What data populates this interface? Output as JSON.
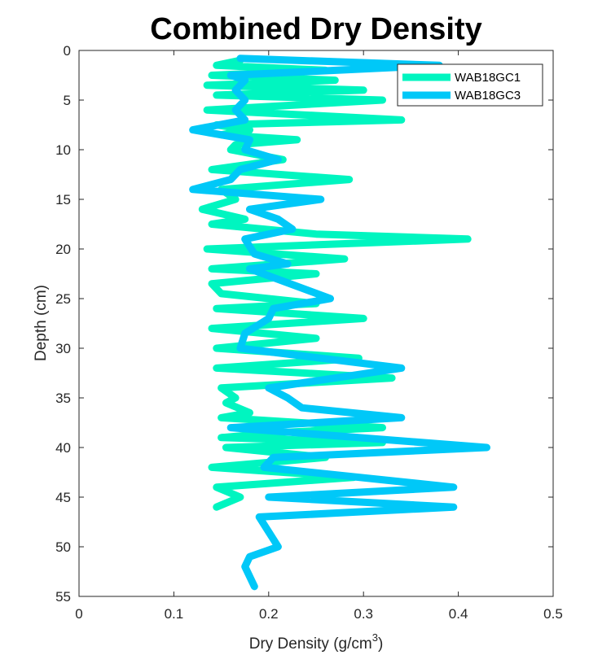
{
  "chart_data": {
    "type": "line",
    "title": "Combined Dry Density",
    "xlabel": "Dry Density (g/cm",
    "xlabel_superscript": "3",
    "xlabel_suffix": ")",
    "ylabel": "Depth (cm)",
    "xlim": [
      0,
      0.5
    ],
    "ylim": [
      0,
      55
    ],
    "y_reversed": true,
    "grid": false,
    "legend_position": "top-right",
    "xticks": [
      "0",
      "0.1",
      "0.2",
      "0.3",
      "0.4",
      "0.5"
    ],
    "yticks": [
      "0",
      "5",
      "10",
      "15",
      "20",
      "25",
      "30",
      "35",
      "40",
      "45",
      "50",
      "55"
    ],
    "series": [
      {
        "name": "WAB18GC1",
        "color": "#00f5c0",
        "points": [
          [
            0.17,
            1
          ],
          [
            0.145,
            1.5
          ],
          [
            0.26,
            2
          ],
          [
            0.14,
            2.5
          ],
          [
            0.27,
            3
          ],
          [
            0.135,
            3.5
          ],
          [
            0.3,
            4
          ],
          [
            0.145,
            4.5
          ],
          [
            0.32,
            5
          ],
          [
            0.135,
            6
          ],
          [
            0.34,
            7
          ],
          [
            0.145,
            7.5
          ],
          [
            0.18,
            8
          ],
          [
            0.15,
            8.5
          ],
          [
            0.23,
            9
          ],
          [
            0.165,
            9.5
          ],
          [
            0.16,
            10
          ],
          [
            0.215,
            11
          ],
          [
            0.14,
            12
          ],
          [
            0.285,
            13
          ],
          [
            0.15,
            14
          ],
          [
            0.165,
            15
          ],
          [
            0.13,
            16
          ],
          [
            0.175,
            17
          ],
          [
            0.14,
            17.5
          ],
          [
            0.25,
            18.5
          ],
          [
            0.41,
            19
          ],
          [
            0.135,
            20
          ],
          [
            0.28,
            21
          ],
          [
            0.14,
            22
          ],
          [
            0.25,
            22.5
          ],
          [
            0.14,
            23.5
          ],
          [
            0.15,
            24.5
          ],
          [
            0.25,
            25.5
          ],
          [
            0.145,
            26
          ],
          [
            0.3,
            27
          ],
          [
            0.14,
            28
          ],
          [
            0.25,
            29
          ],
          [
            0.145,
            30
          ],
          [
            0.295,
            31
          ],
          [
            0.145,
            32
          ],
          [
            0.33,
            33
          ],
          [
            0.15,
            34
          ],
          [
            0.165,
            35
          ],
          [
            0.155,
            35.5
          ],
          [
            0.18,
            36.5
          ],
          [
            0.15,
            37
          ],
          [
            0.32,
            38
          ],
          [
            0.21,
            38.5
          ],
          [
            0.15,
            39
          ],
          [
            0.32,
            39.5
          ],
          [
            0.155,
            40
          ],
          [
            0.26,
            41
          ],
          [
            0.14,
            42
          ],
          [
            0.29,
            43
          ],
          [
            0.145,
            44
          ],
          [
            0.17,
            45
          ],
          [
            0.145,
            46
          ]
        ]
      },
      {
        "name": "WAB18GC3",
        "color": "#00c8f8",
        "points": [
          [
            0.17,
            0.8
          ],
          [
            0.38,
            1.5
          ],
          [
            0.16,
            2.5
          ],
          [
            0.175,
            3
          ],
          [
            0.165,
            4
          ],
          [
            0.175,
            5
          ],
          [
            0.165,
            6
          ],
          [
            0.175,
            7
          ],
          [
            0.12,
            8
          ],
          [
            0.18,
            9
          ],
          [
            0.175,
            10
          ],
          [
            0.21,
            11
          ],
          [
            0.17,
            12
          ],
          [
            0.16,
            13
          ],
          [
            0.12,
            14
          ],
          [
            0.255,
            15
          ],
          [
            0.18,
            16
          ],
          [
            0.21,
            17
          ],
          [
            0.225,
            18
          ],
          [
            0.175,
            19
          ],
          [
            0.185,
            20.5
          ],
          [
            0.22,
            21.5
          ],
          [
            0.18,
            22
          ],
          [
            0.265,
            25
          ],
          [
            0.205,
            26
          ],
          [
            0.2,
            27
          ],
          [
            0.175,
            28.5
          ],
          [
            0.17,
            30
          ],
          [
            0.34,
            32
          ],
          [
            0.2,
            34
          ],
          [
            0.22,
            35
          ],
          [
            0.235,
            36
          ],
          [
            0.34,
            37
          ],
          [
            0.16,
            38
          ],
          [
            0.43,
            40
          ],
          [
            0.205,
            41
          ],
          [
            0.195,
            42
          ],
          [
            0.395,
            44
          ],
          [
            0.2,
            45
          ],
          [
            0.395,
            46
          ],
          [
            0.19,
            47
          ],
          [
            0.2,
            48.5
          ],
          [
            0.21,
            50
          ],
          [
            0.18,
            51
          ],
          [
            0.175,
            52
          ],
          [
            0.185,
            54
          ]
        ]
      }
    ]
  }
}
